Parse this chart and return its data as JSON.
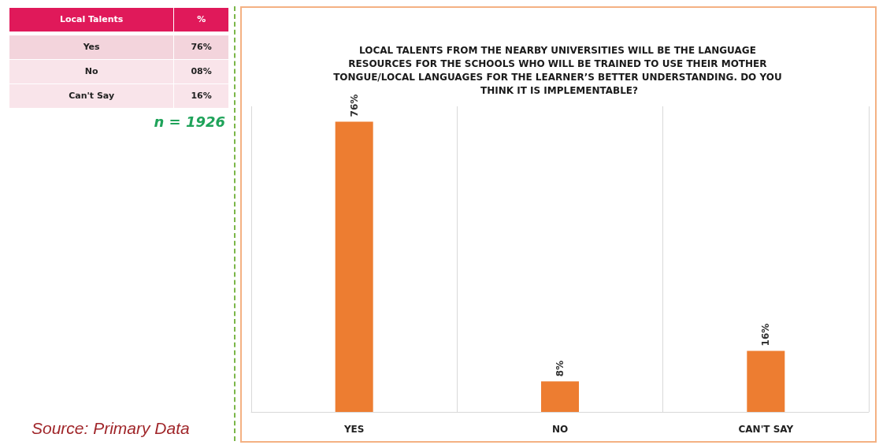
{
  "chart_data": [
    {
      "type": "other",
      "xlabel": "Local Talents",
      "ylabel": "%",
      "categories": [
        "Yes",
        "No",
        "Can't Say"
      ],
      "value_labels": [
        "76%",
        "08%",
        "16%"
      ],
      "annotations": [
        "n = 1926",
        "Source: Primary Data"
      ]
    },
    {
      "type": "bar",
      "title": "LOCAL TALENTS FROM THE NEARBY UNIVERSITIES WILL BE THE LANGUAGE RESOURCES FOR THE SCHOOLS WHO WILL BE TRAINED TO USE THEIR MOTHER TONGUE/LOCAL LANGUAGES FOR THE LEARNER’S BETTER UNDERSTANDING. DO YOU THINK IT IS IMPLEMENTABLE?",
      "categories": [
        "YES",
        "NO",
        "CAN'T SAY"
      ],
      "values": [
        76,
        8,
        16
      ],
      "value_labels": [
        "76%",
        "8%",
        "16%"
      ],
      "color": "#ed7d31",
      "ylim": [
        0,
        80
      ],
      "tick_labels": "x",
      "grid": "x"
    }
  ]
}
